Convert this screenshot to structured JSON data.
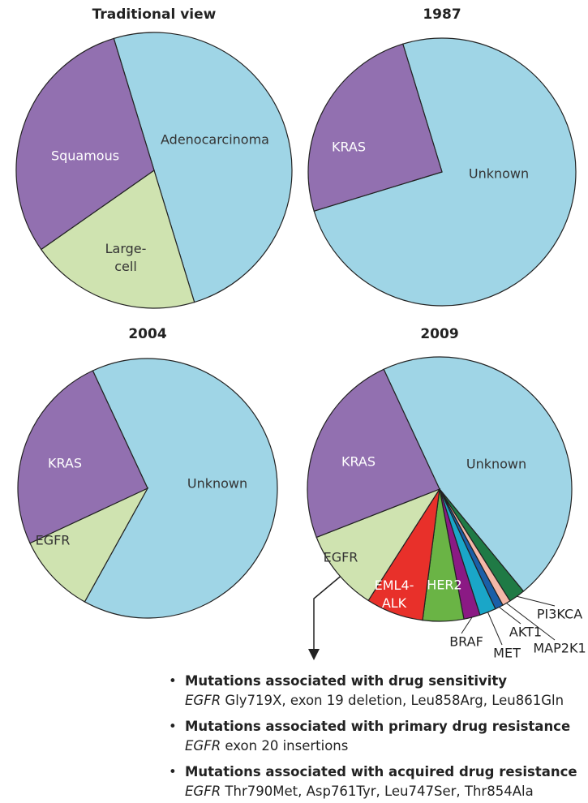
{
  "chart_data": [
    {
      "type": "pie",
      "title": "Traditional view",
      "start_angle": -17,
      "categories": [
        "Adenocarcinoma",
        "Large-cell",
        "Squamous"
      ],
      "values": [
        50,
        20,
        30
      ],
      "colors": [
        "#9fd5e6",
        "#cfe3b0",
        "#9270b0"
      ],
      "label_colors": [
        "#333333",
        "#333333",
        "#ffffff"
      ]
    },
    {
      "type": "pie",
      "title": "1987",
      "start_angle": -17,
      "categories": [
        "Unknown",
        "KRAS"
      ],
      "values": [
        75,
        25
      ],
      "colors": [
        "#9fd5e6",
        "#9270b0"
      ],
      "label_colors": [
        "#333333",
        "#ffffff"
      ]
    },
    {
      "type": "pie",
      "title": "2004",
      "start_angle": -25,
      "categories": [
        "Unknown",
        "EGFR",
        "KRAS"
      ],
      "values": [
        65,
        10,
        25
      ],
      "colors": [
        "#9fd5e6",
        "#cfe3b0",
        "#9270b0"
      ],
      "label_colors": [
        "#333333",
        "#333333",
        "#ffffff"
      ]
    },
    {
      "type": "pie",
      "title": "2009",
      "start_angle": -25,
      "categories": [
        "Unknown",
        "PI3KCA",
        "MAP2K1",
        "AKT1",
        "MET",
        "BRAF",
        "HER2",
        "EML4-ALK",
        "EGFR",
        "KRAS"
      ],
      "values": [
        46,
        2,
        1,
        1,
        2,
        2,
        5,
        7,
        10,
        24
      ],
      "colors": [
        "#9fd5e6",
        "#1f7a45",
        "#f5b8a8",
        "#1a5fa8",
        "#1aa6c8",
        "#8b1a84",
        "#6ab445",
        "#e8302a",
        "#cfe3b0",
        "#9270b0"
      ],
      "label_colors": [
        "#333333",
        "#333333",
        "#333333",
        "#333333",
        "#333333",
        "#333333",
        "#ffffff",
        "#ffffff",
        "#333333",
        "#ffffff"
      ]
    }
  ],
  "notes": [
    {
      "heading": "Mutations associated with drug sensitivity",
      "gene": "EGFR",
      "detail": "Gly719X, exon 19 deletion, Leu858Arg, Leu861Gln"
    },
    {
      "heading": "Mutations associated with primary drug resistance",
      "gene": "EGFR",
      "detail": "exon 20 insertions"
    },
    {
      "heading": "Mutations associated with acquired drug resistance",
      "gene": "EGFR",
      "detail": "Thr790Met, Asp761Tyr, Leu747Ser, Thr854Ala"
    }
  ]
}
